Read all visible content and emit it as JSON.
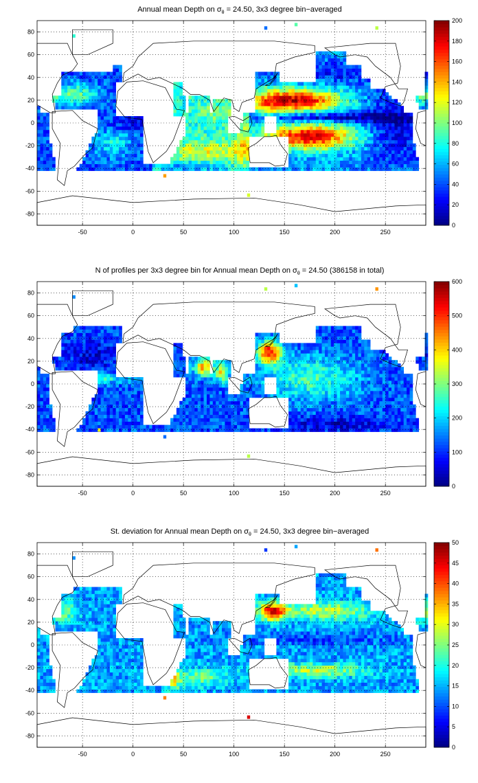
{
  "chart_data": [
    {
      "type": "heatmap",
      "title_prefix": "Annual mean Depth on ",
      "title_sigma": "σ",
      "title_sub": "θ",
      "title_suffix": " = 24.50, 3x3 degree bin−averaged",
      "xlim": [
        -95,
        290
      ],
      "ylim": [
        -90,
        90
      ],
      "x_ticks": [
        -50,
        0,
        50,
        100,
        150,
        200,
        250
      ],
      "y_ticks": [
        80,
        60,
        40,
        20,
        0,
        -20,
        -40,
        -60,
        -80
      ],
      "grid": "dotted",
      "colorbar": {
        "min": 0,
        "max": 200,
        "ticks": [
          200,
          180,
          160,
          140,
          120,
          100,
          80,
          60,
          40,
          20,
          0
        ]
      },
      "colormap": "jet",
      "pattern": "depth"
    },
    {
      "type": "heatmap",
      "title_prefix": "N of profiles per 3x3 degree bin for Annual mean Depth on ",
      "title_sigma": "σ",
      "title_sub": "θ",
      "title_suffix": " = 24.50 (386158 in total)",
      "xlim": [
        -95,
        290
      ],
      "ylim": [
        -90,
        90
      ],
      "x_ticks": [
        -50,
        0,
        50,
        100,
        150,
        200,
        250
      ],
      "y_ticks": [
        80,
        60,
        40,
        20,
        0,
        -20,
        -40,
        -60,
        -80
      ],
      "grid": "dotted",
      "colorbar": {
        "min": 0,
        "max": 600,
        "ticks": [
          600,
          500,
          400,
          300,
          200,
          100,
          0
        ]
      },
      "colormap": "jet",
      "pattern": "count"
    },
    {
      "type": "heatmap",
      "title_prefix": "St. deviation for Annual mean Depth on ",
      "title_sigma": "σ",
      "title_sub": "θ",
      "title_suffix": " = 24.50, 3x3 degree bin−averaged",
      "xlim": [
        -95,
        290
      ],
      "ylim": [
        -90,
        90
      ],
      "x_ticks": [
        -50,
        0,
        50,
        100,
        150,
        200,
        250
      ],
      "y_ticks": [
        80,
        60,
        40,
        20,
        0,
        -20,
        -40,
        -60,
        -80
      ],
      "grid": "dotted",
      "colorbar": {
        "min": 0,
        "max": 50,
        "ticks": [
          50,
          45,
          40,
          35,
          30,
          25,
          20,
          15,
          10,
          5,
          0
        ]
      },
      "colormap": "jet",
      "pattern": "std"
    }
  ]
}
